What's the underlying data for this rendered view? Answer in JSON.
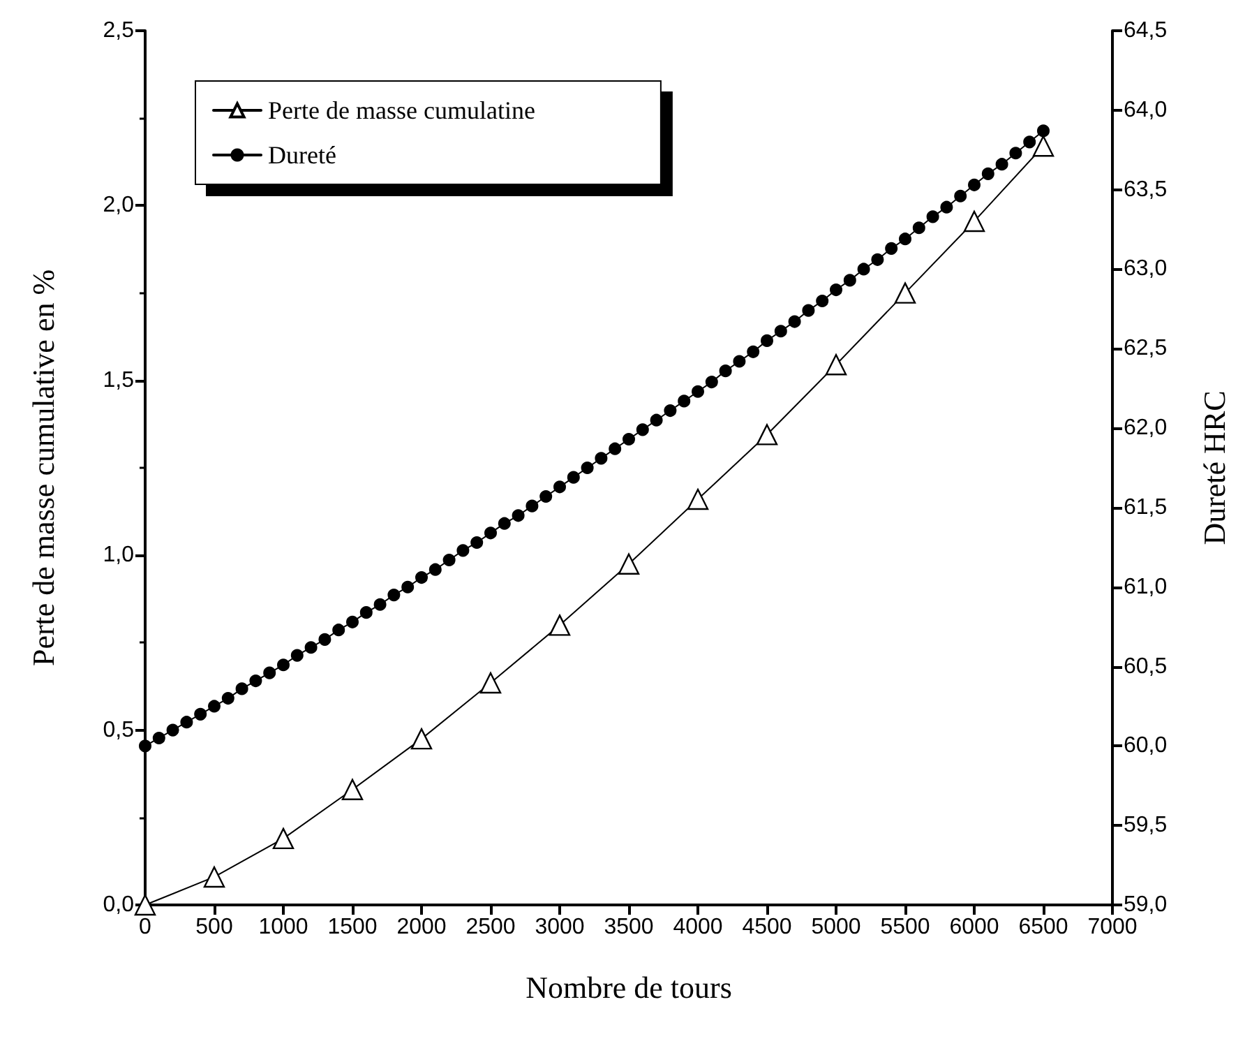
{
  "chart_data": {
    "type": "line",
    "xlabel": "Nombre de tours",
    "ylabel": "Perte de masse cumulative en %",
    "y2label": "Dureté HRC",
    "xlim": [
      0,
      7000
    ],
    "xticks": [
      0,
      500,
      1000,
      1500,
      2000,
      2500,
      3000,
      3500,
      4000,
      4500,
      5000,
      5500,
      6000,
      6500,
      7000
    ],
    "ylim": [
      0,
      2.5
    ],
    "yticks": [
      {
        "value": 0,
        "label": "0,0"
      },
      {
        "value": 0.5,
        "label": "0,5"
      },
      {
        "value": 1,
        "label": "1,0"
      },
      {
        "value": 1.5,
        "label": "1,5"
      },
      {
        "value": 2,
        "label": "2,0"
      },
      {
        "value": 2.5,
        "label": "2,5"
      }
    ],
    "y2lim": [
      59,
      64.5
    ],
    "y2ticks": [
      {
        "value": 59,
        "label": "59,0"
      },
      {
        "value": 59.5,
        "label": "59,5"
      },
      {
        "value": 60,
        "label": "60,0"
      },
      {
        "value": 60.5,
        "label": "60,5"
      },
      {
        "value": 61,
        "label": "61,0"
      },
      {
        "value": 61.5,
        "label": "61,5"
      },
      {
        "value": 62,
        "label": "62,0"
      },
      {
        "value": 62.5,
        "label": "62,5"
      },
      {
        "value": 63,
        "label": "63,0"
      },
      {
        "value": 63.5,
        "label": "63,5"
      },
      {
        "value": 64,
        "label": "64,0"
      },
      {
        "value": 64.5,
        "label": "64,5"
      }
    ],
    "grid": false,
    "legend": "top left",
    "line_style": "solid",
    "series": [
      {
        "name": "Perte de masse cumulatine",
        "color": "#000000",
        "marker": "triangle",
        "x": [
          0,
          500,
          1000,
          1500,
          2000,
          2500,
          3000,
          3500,
          4000,
          4500,
          5000,
          5500,
          6000,
          6500
        ],
        "values": [
          0.0,
          0.08,
          0.19,
          0.33,
          0.475,
          0.635,
          0.8,
          0.975,
          1.16,
          1.345,
          1.545,
          1.75,
          1.955,
          2.17
        ]
      },
      {
        "name": "Dureté",
        "color": "#000000",
        "marker": "circle",
        "axis": "y2",
        "x": [
          0,
          100,
          200,
          300,
          400,
          500,
          600,
          700,
          800,
          900,
          1000,
          1100,
          1200,
          1300,
          1400,
          1500,
          1600,
          1700,
          1800,
          1900,
          2000,
          2100,
          2200,
          2300,
          2400,
          2500,
          2600,
          2700,
          2800,
          2900,
          3000,
          3100,
          3200,
          3300,
          3400,
          3500,
          3600,
          3700,
          3800,
          3900,
          4000,
          4100,
          4200,
          4300,
          4400,
          4500,
          4600,
          4700,
          4800,
          4900,
          5000,
          5100,
          5200,
          5300,
          5400,
          5500,
          5600,
          5700,
          5800,
          5900,
          6000,
          6100,
          6200,
          6300,
          6400,
          6500
        ],
        "values": [
          60.0,
          60.05,
          60.1,
          60.15,
          60.2,
          60.25,
          60.3,
          60.36,
          60.41,
          60.46,
          60.51,
          60.57,
          60.62,
          60.67,
          60.73,
          60.78,
          60.84,
          60.89,
          60.95,
          61.0,
          61.06,
          61.11,
          61.17,
          61.23,
          61.28,
          61.34,
          61.4,
          61.45,
          61.51,
          61.57,
          61.63,
          61.69,
          61.75,
          61.81,
          61.87,
          61.93,
          61.99,
          62.05,
          62.11,
          62.17,
          62.23,
          62.29,
          62.36,
          62.42,
          62.48,
          62.55,
          62.61,
          62.67,
          62.74,
          62.8,
          62.87,
          62.93,
          63.0,
          63.06,
          63.13,
          63.19,
          63.26,
          63.33,
          63.39,
          63.46,
          63.53,
          63.6,
          63.66,
          63.73,
          63.8,
          63.87
        ]
      }
    ]
  }
}
